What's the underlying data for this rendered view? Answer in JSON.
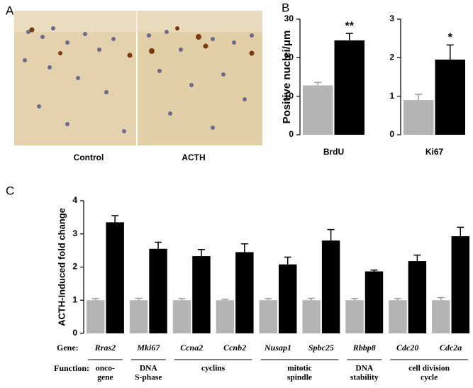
{
  "figure": {
    "panel_labels": [
      "A",
      "B",
      "C"
    ],
    "image_labels": [
      "Control",
      "ACTH"
    ]
  },
  "chart_data": [
    {
      "type": "bar",
      "ylabel": "Positive nuclei/μm",
      "categories": [
        "BrdU"
      ],
      "series": [
        {
          "color": "#b4b4b4",
          "values": [
            12.8
          ],
          "errors": [
            0.8
          ]
        },
        {
          "color": "#000000",
          "values": [
            24.5
          ],
          "errors": [
            1.8
          ],
          "annotations": [
            "**"
          ]
        }
      ],
      "ylim": [
        0,
        30
      ],
      "yticks": [
        0,
        10,
        20,
        30
      ]
    },
    {
      "type": "bar",
      "categories": [
        "Ki67"
      ],
      "series": [
        {
          "color": "#b4b4b4",
          "values": [
            0.9
          ],
          "errors": [
            0.15
          ]
        },
        {
          "color": "#000000",
          "values": [
            1.95
          ],
          "errors": [
            0.38
          ],
          "annotations": [
            "*"
          ]
        }
      ],
      "ylim": [
        0,
        3
      ],
      "yticks": [
        0,
        1,
        2,
        3
      ]
    },
    {
      "type": "bar",
      "ylabel": "ACTH-Induced fold change",
      "gene_label": "Gene:",
      "function_label": "Function:",
      "categories": [
        "Rras2",
        "Mki67",
        "Ccna2",
        "Ccnb2",
        "Nusap1",
        "Spbc25",
        "Rbbp8",
        "Cdc20",
        "Cdc2a"
      ],
      "series": [
        {
          "color": "#b4b4b4",
          "values": [
            1,
            1,
            1,
            1,
            1,
            1,
            1,
            1,
            1
          ],
          "errors": [
            0.05,
            0.06,
            0.05,
            0.03,
            0.05,
            0.06,
            0.05,
            0.05,
            0.08
          ]
        },
        {
          "color": "#000000",
          "values": [
            3.35,
            2.55,
            2.33,
            2.45,
            2.08,
            2.8,
            1.87,
            2.18,
            2.93
          ],
          "errors": [
            0.2,
            0.2,
            0.2,
            0.25,
            0.22,
            0.33,
            0.04,
            0.18,
            0.27
          ]
        }
      ],
      "functions": [
        {
          "lines": [
            "onco-",
            "gene"
          ],
          "span": 1
        },
        {
          "lines": [
            "DNA",
            "S-phase"
          ],
          "span": 1
        },
        {
          "lines": [
            "cyclins"
          ],
          "span": 2
        },
        {
          "lines": [
            "mitotic",
            "spindle"
          ],
          "span": 2
        },
        {
          "lines": [
            "DNA",
            "stability"
          ],
          "span": 1
        },
        {
          "lines": [
            "cell division",
            "cycle"
          ],
          "span": 2
        }
      ],
      "ylim": [
        0,
        4
      ],
      "yticks": [
        0,
        1,
        2,
        3,
        4
      ]
    }
  ]
}
